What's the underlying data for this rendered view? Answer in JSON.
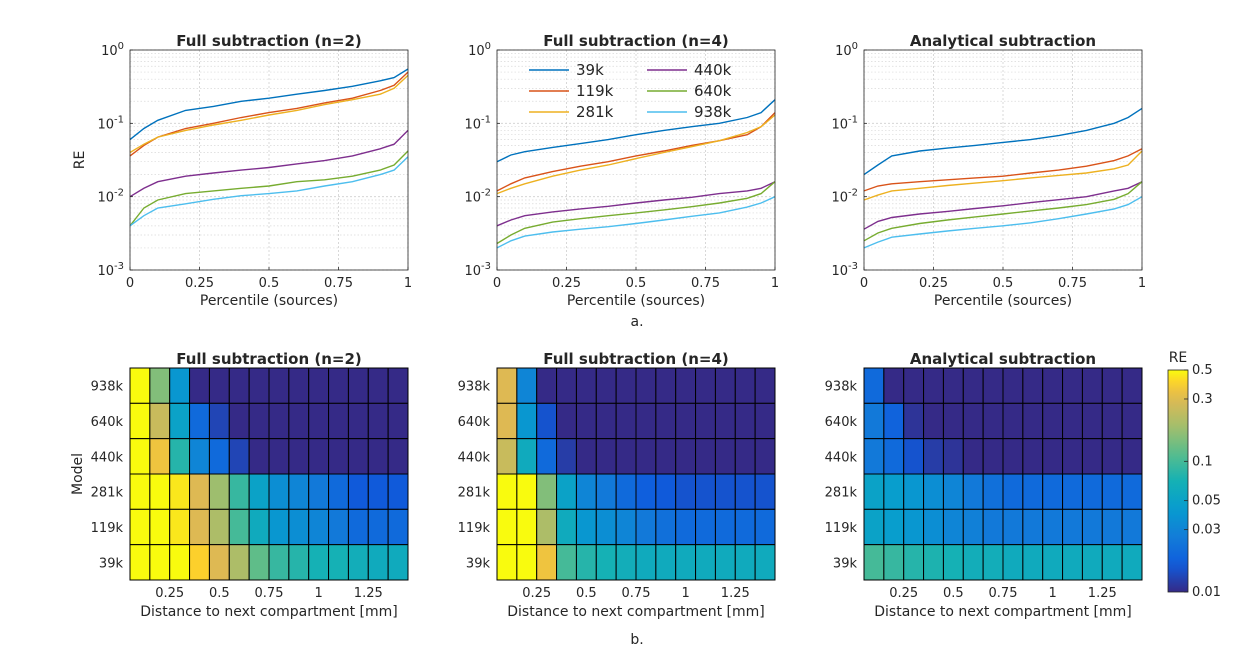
{
  "figure": {
    "caption_top": "a.",
    "caption_bottom": "b."
  },
  "colors": {
    "39k": "#0072BD",
    "119k": "#D95319",
    "281k": "#EDB120",
    "440k": "#7E2F8E",
    "640k": "#77AC30",
    "938k": "#4DBEEE"
  },
  "chart_data": [
    {
      "type": "line",
      "title": "Full subtraction (n=2)",
      "xlabel": "Percentile (sources)",
      "ylabel": "RE",
      "xlim": [
        0,
        1
      ],
      "ylim": [
        0.001,
        1
      ],
      "yscale": "log",
      "grid": true,
      "xticks": [
        "0",
        "0.25",
        "0.5",
        "0.75",
        "1"
      ],
      "yticks": [
        "10^-3",
        "10^-2",
        "10^-1",
        "10^0"
      ],
      "x": [
        0,
        0.05,
        0.1,
        0.2,
        0.3,
        0.4,
        0.5,
        0.6,
        0.7,
        0.8,
        0.9,
        0.95,
        1.0
      ],
      "series": [
        {
          "name": "39k",
          "values": [
            0.06,
            0.085,
            0.11,
            0.15,
            0.17,
            0.2,
            0.22,
            0.25,
            0.28,
            0.32,
            0.38,
            0.42,
            0.55
          ]
        },
        {
          "name": "119k",
          "values": [
            0.036,
            0.05,
            0.065,
            0.085,
            0.1,
            0.12,
            0.14,
            0.16,
            0.19,
            0.22,
            0.28,
            0.33,
            0.5
          ]
        },
        {
          "name": "281k",
          "values": [
            0.04,
            0.052,
            0.065,
            0.08,
            0.095,
            0.11,
            0.13,
            0.15,
            0.18,
            0.21,
            0.25,
            0.3,
            0.45
          ]
        },
        {
          "name": "440k",
          "values": [
            0.01,
            0.013,
            0.016,
            0.019,
            0.021,
            0.023,
            0.025,
            0.028,
            0.031,
            0.036,
            0.045,
            0.052,
            0.08
          ]
        },
        {
          "name": "640k",
          "values": [
            0.004,
            0.007,
            0.009,
            0.011,
            0.012,
            0.013,
            0.014,
            0.016,
            0.017,
            0.019,
            0.023,
            0.027,
            0.042
          ]
        },
        {
          "name": "938k",
          "values": [
            0.004,
            0.0055,
            0.007,
            0.008,
            0.0092,
            0.0103,
            0.011,
            0.012,
            0.014,
            0.016,
            0.02,
            0.023,
            0.035
          ]
        }
      ]
    },
    {
      "type": "line",
      "title": "Full subtraction (n=4)",
      "xlabel": "Percentile (sources)",
      "ylabel": "",
      "xlim": [
        0,
        1
      ],
      "ylim": [
        0.001,
        1
      ],
      "yscale": "log",
      "grid": true,
      "xticks": [
        "0",
        "0.25",
        "0.5",
        "0.75",
        "1"
      ],
      "yticks": [
        "10^-3",
        "10^-2",
        "10^-1",
        "10^0"
      ],
      "legend": {
        "placement": "top",
        "columns": 2
      },
      "x": [
        0,
        0.05,
        0.1,
        0.2,
        0.3,
        0.4,
        0.5,
        0.6,
        0.7,
        0.8,
        0.9,
        0.95,
        1.0
      ],
      "series": [
        {
          "name": "39k",
          "values": [
            0.03,
            0.037,
            0.041,
            0.047,
            0.053,
            0.06,
            0.07,
            0.08,
            0.09,
            0.1,
            0.12,
            0.14,
            0.21
          ]
        },
        {
          "name": "119k",
          "values": [
            0.012,
            0.015,
            0.018,
            0.022,
            0.026,
            0.03,
            0.036,
            0.042,
            0.05,
            0.058,
            0.07,
            0.09,
            0.14
          ]
        },
        {
          "name": "281k",
          "values": [
            0.011,
            0.013,
            0.015,
            0.019,
            0.023,
            0.027,
            0.033,
            0.04,
            0.048,
            0.058,
            0.075,
            0.09,
            0.13
          ]
        },
        {
          "name": "440k",
          "values": [
            0.004,
            0.0048,
            0.0055,
            0.0062,
            0.0068,
            0.0074,
            0.0082,
            0.009,
            0.0098,
            0.011,
            0.012,
            0.013,
            0.016
          ]
        },
        {
          "name": "640k",
          "values": [
            0.0023,
            0.003,
            0.0037,
            0.0045,
            0.005,
            0.0055,
            0.006,
            0.0066,
            0.0073,
            0.0082,
            0.0095,
            0.011,
            0.016
          ]
        },
        {
          "name": "938k",
          "values": [
            0.002,
            0.0025,
            0.0029,
            0.0033,
            0.0036,
            0.0039,
            0.0043,
            0.0048,
            0.0054,
            0.006,
            0.0072,
            0.0082,
            0.01
          ]
        }
      ]
    },
    {
      "type": "line",
      "title": "Analytical subtraction",
      "xlabel": "Percentile (sources)",
      "ylabel": "",
      "xlim": [
        0,
        1
      ],
      "ylim": [
        0.001,
        1
      ],
      "yscale": "log",
      "grid": true,
      "xticks": [
        "0",
        "0.25",
        "0.5",
        "0.75",
        "1"
      ],
      "yticks": [
        "10^-3",
        "10^-2",
        "10^-1",
        "10^0"
      ],
      "x": [
        0,
        0.05,
        0.1,
        0.2,
        0.3,
        0.4,
        0.5,
        0.6,
        0.7,
        0.8,
        0.9,
        0.95,
        1.0
      ],
      "series": [
        {
          "name": "39k",
          "values": [
            0.02,
            0.027,
            0.036,
            0.042,
            0.046,
            0.05,
            0.055,
            0.06,
            0.068,
            0.08,
            0.1,
            0.12,
            0.16
          ]
        },
        {
          "name": "119k",
          "values": [
            0.012,
            0.014,
            0.015,
            0.016,
            0.017,
            0.018,
            0.019,
            0.021,
            0.023,
            0.026,
            0.031,
            0.036,
            0.045
          ]
        },
        {
          "name": "281k",
          "values": [
            0.009,
            0.0105,
            0.012,
            0.013,
            0.0142,
            0.0153,
            0.0165,
            0.018,
            0.0195,
            0.021,
            0.024,
            0.027,
            0.042
          ]
        },
        {
          "name": "440k",
          "values": [
            0.0036,
            0.0046,
            0.0052,
            0.0058,
            0.0063,
            0.0069,
            0.0075,
            0.0083,
            0.0091,
            0.01,
            0.012,
            0.013,
            0.016
          ]
        },
        {
          "name": "640k",
          "values": [
            0.0025,
            0.0032,
            0.0037,
            0.0043,
            0.0048,
            0.0053,
            0.0058,
            0.0064,
            0.007,
            0.0078,
            0.0092,
            0.011,
            0.016
          ]
        },
        {
          "name": "938k",
          "values": [
            0.002,
            0.0024,
            0.0028,
            0.0031,
            0.0034,
            0.0037,
            0.004,
            0.0044,
            0.005,
            0.0058,
            0.0068,
            0.0078,
            0.01
          ]
        }
      ]
    },
    {
      "type": "heatmap",
      "title": "Full subtraction (n=2)",
      "xlabel": "Distance to next compartment [mm]",
      "ylabel": "Model",
      "xticks": [
        "0.25",
        "0.5",
        "0.75",
        "1",
        "1.25"
      ],
      "xtick_values": [
        0.25,
        0.5,
        0.75,
        1.0,
        1.25
      ],
      "x": [
        0.1,
        0.2,
        0.3,
        0.4,
        0.5,
        0.6,
        0.7,
        0.8,
        0.9,
        1.0,
        1.1,
        1.2,
        1.3,
        1.4
      ],
      "rows": [
        "938k",
        "640k",
        "440k",
        "281k",
        "119k",
        "39k"
      ],
      "values": [
        [
          0.5,
          0.15,
          0.04,
          0.01,
          0.01,
          0.01,
          0.01,
          0.01,
          0.01,
          0.01,
          0.01,
          0.01,
          0.01,
          0.01
        ],
        [
          0.5,
          0.25,
          0.05,
          0.02,
          0.013,
          0.01,
          0.01,
          0.01,
          0.01,
          0.01,
          0.01,
          0.01,
          0.01,
          0.01
        ],
        [
          0.5,
          0.35,
          0.08,
          0.03,
          0.02,
          0.013,
          0.01,
          0.01,
          0.01,
          0.01,
          0.01,
          0.01,
          0.01,
          0.01
        ],
        [
          0.5,
          0.5,
          0.45,
          0.3,
          0.18,
          0.09,
          0.05,
          0.035,
          0.03,
          0.025,
          0.02,
          0.016,
          0.016,
          0.016
        ],
        [
          0.5,
          0.5,
          0.45,
          0.3,
          0.2,
          0.1,
          0.06,
          0.04,
          0.035,
          0.03,
          0.025,
          0.02,
          0.02,
          0.02
        ],
        [
          0.5,
          0.5,
          0.5,
          0.4,
          0.3,
          0.2,
          0.12,
          0.09,
          0.08,
          0.07,
          0.07,
          0.065,
          0.06,
          0.06
        ]
      ]
    },
    {
      "type": "heatmap",
      "title": "Full subtraction (n=4)",
      "xlabel": "Distance to next compartment [mm]",
      "ylabel": "",
      "xticks": [
        "0.25",
        "0.5",
        "0.75",
        "1",
        "1.25"
      ],
      "xtick_values": [
        0.25,
        0.5,
        0.75,
        1.0,
        1.25
      ],
      "x": [
        0.1,
        0.2,
        0.3,
        0.4,
        0.5,
        0.6,
        0.7,
        0.8,
        0.9,
        1.0,
        1.1,
        1.2,
        1.3,
        1.4
      ],
      "rows": [
        "938k",
        "640k",
        "440k",
        "281k",
        "119k",
        "39k"
      ],
      "values": [
        [
          0.3,
          0.03,
          0.01,
          0.01,
          0.01,
          0.01,
          0.01,
          0.01,
          0.01,
          0.01,
          0.01,
          0.01,
          0.01,
          0.01
        ],
        [
          0.3,
          0.04,
          0.015,
          0.01,
          0.01,
          0.01,
          0.01,
          0.01,
          0.01,
          0.01,
          0.01,
          0.01,
          0.01,
          0.01
        ],
        [
          0.25,
          0.06,
          0.02,
          0.012,
          0.01,
          0.01,
          0.01,
          0.01,
          0.01,
          0.01,
          0.01,
          0.01,
          0.01,
          0.01
        ],
        [
          0.5,
          0.5,
          0.15,
          0.05,
          0.03,
          0.025,
          0.02,
          0.017,
          0.016,
          0.015,
          0.015,
          0.015,
          0.015,
          0.015
        ],
        [
          0.5,
          0.5,
          0.2,
          0.06,
          0.04,
          0.035,
          0.03,
          0.025,
          0.022,
          0.02,
          0.02,
          0.02,
          0.02,
          0.02
        ],
        [
          0.5,
          0.5,
          0.35,
          0.1,
          0.08,
          0.07,
          0.065,
          0.06,
          0.06,
          0.06,
          0.06,
          0.06,
          0.06,
          0.06
        ]
      ]
    },
    {
      "type": "heatmap",
      "title": "Analytical subtraction",
      "xlabel": "Distance to next compartment [mm]",
      "ylabel": "",
      "xticks": [
        "0.25",
        "0.5",
        "0.75",
        "1",
        "1.25"
      ],
      "xtick_values": [
        0.25,
        0.5,
        0.75,
        1.0,
        1.25
      ],
      "x": [
        0.1,
        0.2,
        0.3,
        0.4,
        0.5,
        0.6,
        0.7,
        0.8,
        0.9,
        1.0,
        1.1,
        1.2,
        1.3,
        1.4
      ],
      "rows": [
        "938k",
        "640k",
        "440k",
        "281k",
        "119k",
        "39k"
      ],
      "values": [
        [
          0.02,
          0.01,
          0.01,
          0.01,
          0.01,
          0.01,
          0.01,
          0.01,
          0.01,
          0.01,
          0.01,
          0.01,
          0.01,
          0.01
        ],
        [
          0.025,
          0.018,
          0.011,
          0.01,
          0.01,
          0.01,
          0.01,
          0.01,
          0.01,
          0.01,
          0.01,
          0.01,
          0.01,
          0.01
        ],
        [
          0.025,
          0.02,
          0.015,
          0.012,
          0.011,
          0.01,
          0.01,
          0.01,
          0.01,
          0.01,
          0.01,
          0.01,
          0.01,
          0.01
        ],
        [
          0.05,
          0.045,
          0.04,
          0.035,
          0.03,
          0.025,
          0.022,
          0.02,
          0.02,
          0.02,
          0.02,
          0.02,
          0.02,
          0.02
        ],
        [
          0.05,
          0.045,
          0.04,
          0.035,
          0.03,
          0.028,
          0.025,
          0.025,
          0.025,
          0.025,
          0.025,
          0.025,
          0.025,
          0.025
        ],
        [
          0.1,
          0.09,
          0.08,
          0.075,
          0.07,
          0.065,
          0.065,
          0.06,
          0.06,
          0.06,
          0.06,
          0.06,
          0.06,
          0.06
        ]
      ]
    },
    {
      "type": "colorbar",
      "label": "RE",
      "scale": "log",
      "range": [
        0.01,
        0.5
      ],
      "ticks": [
        0.5,
        0.3,
        0.1,
        0.05,
        0.03,
        0.01
      ],
      "tick_labels": [
        "0.5",
        "0.3",
        "0.1",
        "0.05",
        "0.03",
        "0.01"
      ]
    }
  ]
}
